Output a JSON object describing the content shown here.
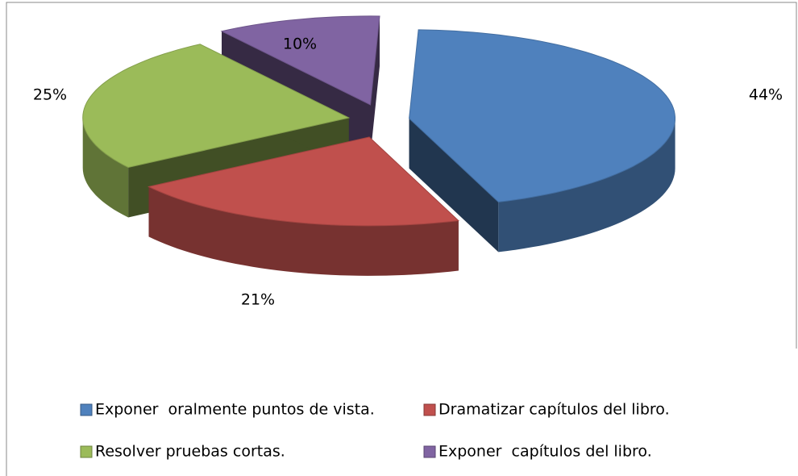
{
  "chart_data": {
    "type": "pie",
    "categories": [
      "Exponer  oralmente puntos de vista.",
      "Dramatizar capítulos del libro.",
      "Resolver pruebas cortas.",
      "Exponer  capítulos del libro."
    ],
    "values": [
      44,
      21,
      25,
      10
    ],
    "value_labels": [
      "44%",
      "21%",
      "25%",
      "10%"
    ],
    "colors": [
      "#4f81bd",
      "#c0504d",
      "#9bbb59",
      "#8064a2"
    ],
    "legend": "bottom"
  }
}
